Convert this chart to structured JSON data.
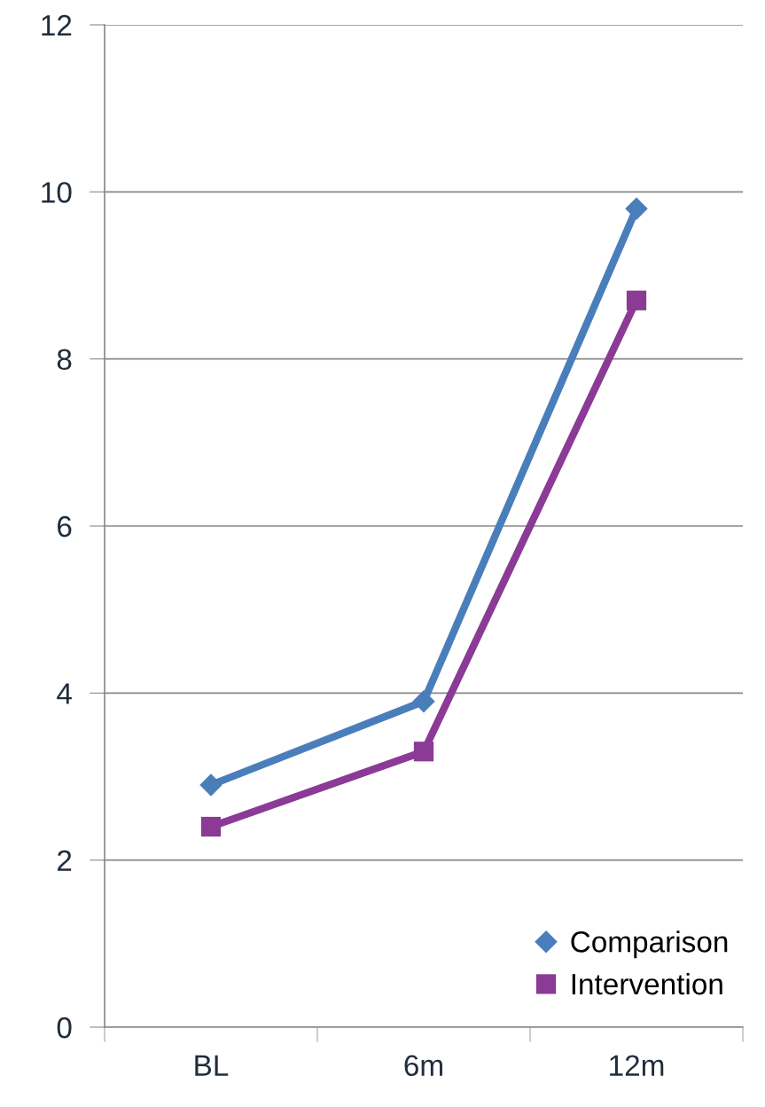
{
  "chart_data": {
    "type": "line",
    "categories": [
      "BL",
      "6m",
      "12m"
    ],
    "series": [
      {
        "name": "Comparison",
        "color": "#4a7ebb",
        "marker": "diamond",
        "values": [
          2.9,
          3.9,
          9.8
        ]
      },
      {
        "name": "Intervention",
        "color": "#8b3a96",
        "marker": "square",
        "values": [
          2.4,
          3.3,
          8.7
        ]
      }
    ],
    "ylim": [
      0,
      12
    ],
    "yticks": [
      0,
      2,
      4,
      6,
      8,
      10,
      12
    ],
    "grid": "y",
    "legend": "bottom right",
    "line_style": "solid"
  }
}
